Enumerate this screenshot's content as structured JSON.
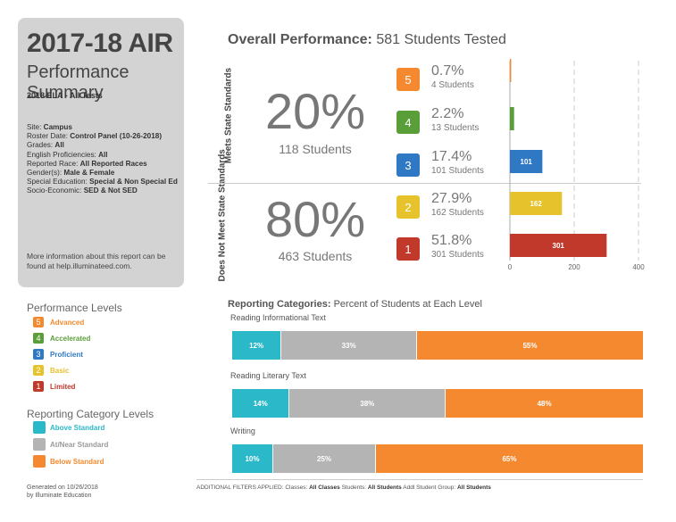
{
  "summary": {
    "title": "2017-18 AIR",
    "subtitle": "Performance Summary",
    "test": "2018 ELA - All Tests",
    "filters": [
      {
        "label": "Site:",
        "value": "Campus"
      },
      {
        "label": "Roster Date:",
        "value": "Control Panel (10-26-2018)"
      },
      {
        "label": "Grades:",
        "value": "All"
      },
      {
        "label": "English Proficiencies:",
        "value": "All"
      },
      {
        "label": "Reported Race:",
        "value": "All Reported Races"
      },
      {
        "label": "Gender(s):",
        "value": "Male & Female"
      },
      {
        "label": "Special Education:",
        "value": "Special & Non Special Ed"
      },
      {
        "label": "Socio-Economic:",
        "value": "SED & Not SED"
      }
    ],
    "more_info": "More information about this report can be found at help.illuminateed.com."
  },
  "overall": {
    "heading_bold": "Overall Performance:",
    "heading_rest": "581 Students Tested",
    "meets_label": "Meets State Standards",
    "not_meets_label": "Does Not Meet State Standards",
    "meets_pct": "20%",
    "meets_students": "118 Students",
    "not_meets_pct": "80%",
    "not_meets_students": "463 Students"
  },
  "levels": [
    {
      "num": "5",
      "pct": "0.7%",
      "students": "4 Students",
      "color": "#f4892f"
    },
    {
      "num": "4",
      "pct": "2.2%",
      "students": "13 Students",
      "color": "#5a9e3a"
    },
    {
      "num": "3",
      "pct": "17.4%",
      "students": "101 Students",
      "color": "#2f78c4"
    },
    {
      "num": "2",
      "pct": "27.9%",
      "students": "162 Students",
      "color": "#e6c22d"
    },
    {
      "num": "1",
      "pct": "51.8%",
      "students": "301 Students",
      "color": "#c0392b"
    }
  ],
  "chart_data": [
    {
      "type": "bar",
      "orientation": "horizontal",
      "title": "Overall Performance: 581 Students Tested",
      "categories": [
        "5",
        "4",
        "3",
        "2",
        "1"
      ],
      "values": [
        4,
        13,
        101,
        162,
        301
      ],
      "data_labels": [
        "",
        "",
        "101",
        "162",
        "301"
      ],
      "xlim": [
        0,
        400
      ],
      "xticks": [
        "0",
        "200",
        "400"
      ],
      "colors": [
        "#f4892f",
        "#5a9e3a",
        "#2f78c4",
        "#e6c22d",
        "#c0392b"
      ]
    },
    {
      "type": "bar",
      "orientation": "horizontal-stacked",
      "title": "Reporting Categories: Percent of Students at Each Level",
      "categories": [
        "Reading Informational Text",
        "Reading Literary Text",
        "Writing"
      ],
      "series": [
        {
          "name": "Above Standard",
          "values": [
            12,
            14,
            10
          ],
          "color": "#2bb8c8"
        },
        {
          "name": "At/Near Standard",
          "values": [
            33,
            38,
            25
          ],
          "color": "#b4b4b4"
        },
        {
          "name": "Below Standard",
          "values": [
            55,
            48,
            65
          ],
          "color": "#f4892f"
        }
      ]
    }
  ],
  "legend": {
    "perf_title": "Performance Levels",
    "perf_items": [
      {
        "num": "5",
        "label": "Advanced",
        "color": "#f4892f"
      },
      {
        "num": "4",
        "label": "Accelerated",
        "color": "#5a9e3a"
      },
      {
        "num": "3",
        "label": "Proficient",
        "color": "#2f78c4"
      },
      {
        "num": "2",
        "label": "Basic",
        "color": "#e6c22d"
      },
      {
        "num": "1",
        "label": "Limited",
        "color": "#c0392b"
      }
    ],
    "cat_title": "Reporting Category Levels",
    "cat_items": [
      {
        "label": "Above Standard",
        "color": "#2bb8c8",
        "text_color": "#2bb8c8"
      },
      {
        "label": "At/Near Standard",
        "color": "#b4b4b4",
        "text_color": "#999999"
      },
      {
        "label": "Below Standard",
        "color": "#f4892f",
        "text_color": "#f4892f"
      }
    ]
  },
  "categories": {
    "heading_bold": "Reporting Categories:",
    "heading_rest": "Percent of Students at Each Level"
  },
  "footer": {
    "generated_line1": "Generated on 10/26/2018",
    "generated_line2": "by Illuminate Education",
    "filters_prefix": "ADDITIONAL FILTERS APPLIED:",
    "classes_label": "Classes:",
    "classes_value": "All Classes",
    "students_label": "Students:",
    "students_value": "All Students",
    "group_label": "Addl Student Group:",
    "group_value": "All Students"
  }
}
